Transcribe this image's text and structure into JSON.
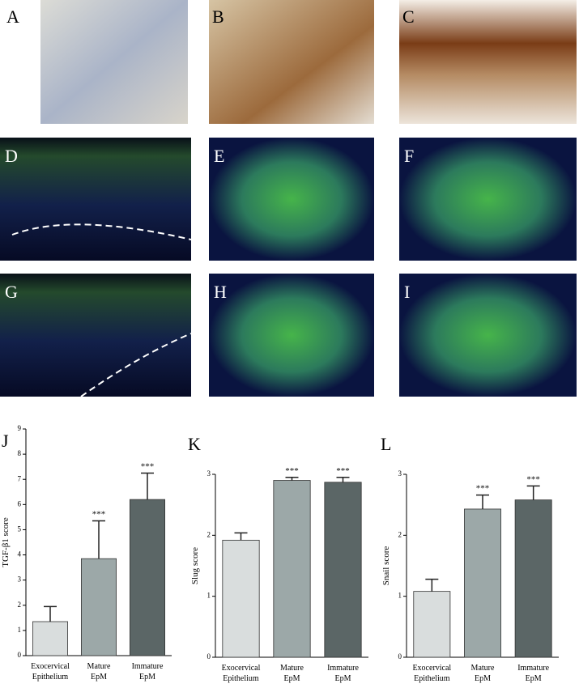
{
  "panels": [
    "A",
    "B",
    "C",
    "D",
    "E",
    "F",
    "G",
    "H",
    "I"
  ],
  "chart_data": [
    {
      "type": "bar",
      "title": "J",
      "y_label": "TGF-β1 score",
      "categories": [
        "Exocervical Epithelium",
        "Mature EpM",
        "Immature EpM"
      ],
      "values": [
        1.35,
        3.85,
        6.2
      ],
      "errors": [
        0.6,
        1.5,
        1.05
      ],
      "significance": [
        null,
        "***",
        "***"
      ],
      "colors": [
        "#d9dddd",
        "#9ca8a8",
        "#5b6666"
      ],
      "ylim": [
        0,
        9
      ],
      "yticks": [
        0,
        1,
        2,
        3,
        4,
        5,
        6,
        7,
        8,
        9
      ]
    },
    {
      "type": "bar",
      "title": "K",
      "y_label": "Slug score",
      "categories": [
        "Exocervical Epithelium",
        "Mature EpM",
        "Immature EpM"
      ],
      "values": [
        1.92,
        2.9,
        2.87
      ],
      "errors": [
        0.12,
        0.05,
        0.08
      ],
      "significance": [
        null,
        "***",
        "***"
      ],
      "colors": [
        "#d9dddd",
        "#9ca8a8",
        "#5b6666"
      ],
      "ylim": [
        0,
        3
      ],
      "yticks": [
        0,
        1,
        2,
        3
      ]
    },
    {
      "type": "bar",
      "title": "L",
      "y_label": "Snail score",
      "categories": [
        "Exocervical Epithelium",
        "Mature EpM",
        "Immature EpM"
      ],
      "values": [
        1.08,
        2.43,
        2.58
      ],
      "errors": [
        0.2,
        0.23,
        0.23
      ],
      "significance": [
        null,
        "***",
        "***"
      ],
      "colors": [
        "#d9dddd",
        "#9ca8a8",
        "#5b6666"
      ],
      "ylim": [
        0,
        3
      ],
      "yticks": [
        0,
        1,
        2,
        3
      ]
    }
  ]
}
